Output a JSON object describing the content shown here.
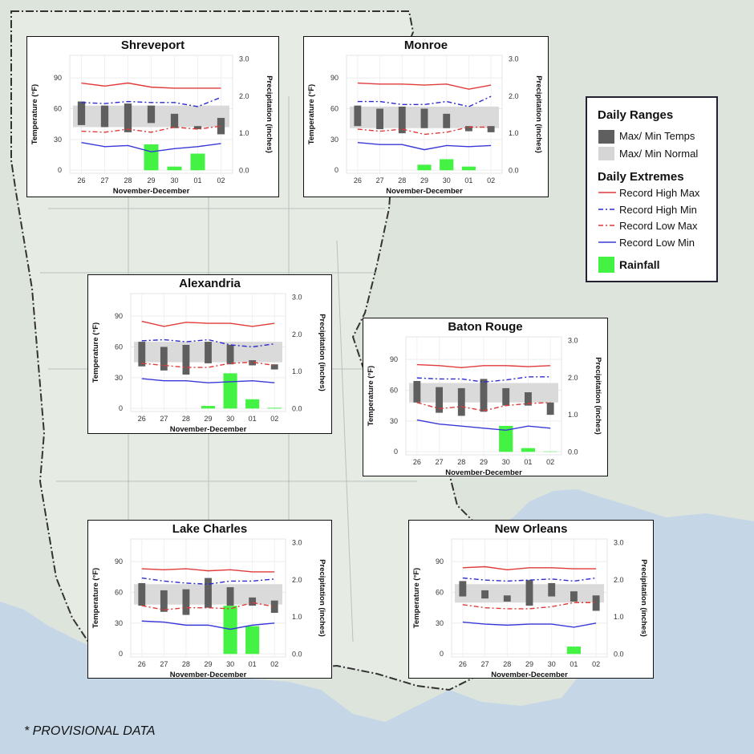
{
  "footnote": "* PROVISIONAL DATA",
  "legend": {
    "ranges_title": "Daily Ranges",
    "temps_label": "Max/ Min Temps",
    "normal_label": "Max/ Min Normal",
    "extremes_title": "Daily Extremes",
    "rec_high_max": "Record High Max",
    "rec_high_min": "Record High Min",
    "rec_low_max": "Record Low Max",
    "rec_low_min": "Record Low Min",
    "rainfall_label": "Rainfall"
  },
  "colors": {
    "temp_bar": "#5f5f5f",
    "normal_band": "#d6d6d6",
    "record_high_max": "#e03a3a",
    "record_high_min": "#2b2bd0",
    "record_low_max": "#e03a3a",
    "record_low_min": "#3838d8",
    "rainfall": "#44f244"
  },
  "chart_data": [
    {
      "type": "bar",
      "title": "Shreveport",
      "xlabel": "November-December",
      "ylabel": "Temperature (°F)",
      "y2label": "Precipitation (inches)",
      "categories": [
        "26",
        "27",
        "28",
        "29",
        "30",
        "01",
        "02"
      ],
      "y_ticks": [
        "0",
        "30",
        "60",
        "90"
      ],
      "y2_ticks": [
        "0.0",
        "1.0",
        "2.0",
        "3.0"
      ],
      "ylim": [
        -3,
        112
      ],
      "y2lim": [
        -0.08,
        3.1
      ],
      "temp_max": [
        67,
        63,
        65,
        63,
        55,
        43,
        51
      ],
      "temp_min": [
        44,
        42,
        37,
        46,
        41,
        40,
        35
      ],
      "normal_max": [
        63,
        63,
        63,
        63,
        63,
        63,
        63
      ],
      "normal_min": [
        42,
        42,
        42,
        42,
        42,
        42,
        42
      ],
      "record_high_max": [
        85,
        82,
        85,
        81,
        80,
        80,
        80
      ],
      "record_high_min": [
        66,
        65,
        67,
        66,
        66,
        62,
        71
      ],
      "record_low_max": [
        38,
        37,
        40,
        37,
        42,
        40,
        43
      ],
      "record_low_min": [
        27,
        23,
        24,
        18,
        21,
        23,
        26
      ],
      "rainfall": [
        0,
        0,
        0,
        0.7,
        0.1,
        0.45,
        0
      ]
    },
    {
      "type": "bar",
      "title": "Monroe",
      "xlabel": "November-December",
      "ylabel": "Temperature (°F)",
      "y2label": "Precipitation (inches)",
      "categories": [
        "26",
        "27",
        "28",
        "29",
        "30",
        "01",
        "02"
      ],
      "y_ticks": [
        "0",
        "30",
        "60",
        "90"
      ],
      "y2_ticks": [
        "0.0",
        "1.0",
        "2.0",
        "3.0"
      ],
      "ylim": [
        -3,
        112
      ],
      "y2lim": [
        -0.08,
        3.1
      ],
      "temp_max": [
        63,
        60,
        62,
        60,
        55,
        43,
        43
      ],
      "temp_min": [
        43,
        40,
        36,
        41,
        41,
        38,
        37
      ],
      "normal_max": [
        62,
        62,
        62,
        62,
        62,
        62,
        62
      ],
      "normal_min": [
        41,
        41,
        41,
        41,
        41,
        41,
        41
      ],
      "record_high_max": [
        85,
        84,
        84,
        83,
        84,
        79,
        83
      ],
      "record_high_min": [
        67,
        67,
        64,
        64,
        67,
        62,
        72
      ],
      "record_low_max": [
        40,
        38,
        40,
        35,
        37,
        42,
        42
      ],
      "record_low_min": [
        27,
        25,
        25,
        20,
        24,
        23,
        24
      ],
      "rainfall": [
        0,
        0,
        0,
        0.15,
        0.3,
        0.1,
        0
      ]
    },
    {
      "type": "bar",
      "title": "Alexandria",
      "xlabel": "November-December",
      "ylabel": "Temperature (°F)",
      "y2label": "Precipitation (inches)",
      "categories": [
        "26",
        "27",
        "28",
        "29",
        "30",
        "01",
        "02"
      ],
      "y_ticks": [
        "0",
        "30",
        "60",
        "90"
      ],
      "y2_ticks": [
        "0.0",
        "1.0",
        "2.0",
        "3.0"
      ],
      "ylim": [
        -3,
        112
      ],
      "y2lim": [
        -0.08,
        3.1
      ],
      "temp_max": [
        65,
        60,
        62,
        65,
        62,
        47,
        43
      ],
      "temp_min": [
        41,
        37,
        33,
        44,
        43,
        42,
        38
      ],
      "normal_max": [
        65,
        65,
        65,
        65,
        65,
        65,
        65
      ],
      "normal_min": [
        45,
        45,
        45,
        45,
        45,
        45,
        45
      ],
      "record_high_max": [
        85,
        80,
        84,
        83,
        83,
        80,
        83
      ],
      "record_high_min": [
        66,
        67,
        65,
        67,
        62,
        60,
        63
      ],
      "record_low_max": [
        44,
        42,
        40,
        40,
        44,
        45,
        42
      ],
      "record_low_min": [
        29,
        27,
        27,
        25,
        26,
        27,
        25
      ],
      "rainfall": [
        0,
        0,
        0,
        0.07,
        0.95,
        0.25,
        0.02
      ]
    },
    {
      "type": "bar",
      "title": "Baton Rouge",
      "xlabel": "November-December",
      "ylabel": "Temperature (°F)",
      "y2label": "Precipitation (inches)",
      "categories": [
        "26",
        "27",
        "28",
        "29",
        "30",
        "01",
        "02"
      ],
      "y_ticks": [
        "0",
        "30",
        "60",
        "90"
      ],
      "y2_ticks": [
        "0.0",
        "1.0",
        "2.0",
        "3.0"
      ],
      "ylim": [
        -3,
        112
      ],
      "y2lim": [
        -0.08,
        3.1
      ],
      "temp_max": [
        69,
        63,
        62,
        71,
        62,
        58,
        48
      ],
      "temp_min": [
        48,
        38,
        35,
        39,
        45,
        45,
        36
      ],
      "normal_max": [
        67,
        67,
        67,
        67,
        67,
        67,
        67
      ],
      "normal_min": [
        48,
        48,
        48,
        48,
        48,
        48,
        48
      ],
      "record_high_max": [
        85,
        84,
        82,
        84,
        84,
        83,
        84
      ],
      "record_high_min": [
        72,
        71,
        71,
        68,
        70,
        73,
        73
      ],
      "record_low_max": [
        48,
        42,
        44,
        40,
        45,
        47,
        48
      ],
      "record_low_min": [
        31,
        27,
        25,
        23,
        21,
        25,
        23
      ],
      "rainfall": [
        0,
        0,
        0,
        0,
        0.7,
        0.1,
        0.01
      ]
    },
    {
      "type": "bar",
      "title": "Lake Charles",
      "xlabel": "November-December",
      "ylabel": "Temperature (°F)",
      "y2label": "Precipitation (inches)",
      "categories": [
        "26",
        "27",
        "28",
        "29",
        "30",
        "01",
        "02"
      ],
      "y_ticks": [
        "0",
        "30",
        "60",
        "90"
      ],
      "y2_ticks": [
        "0.0",
        "1.0",
        "2.0",
        "3.0"
      ],
      "ylim": [
        -3,
        112
      ],
      "y2lim": [
        -0.08,
        3.1
      ],
      "temp_max": [
        69,
        62,
        63,
        74,
        65,
        55,
        52
      ],
      "temp_min": [
        47,
        41,
        38,
        45,
        47,
        47,
        40
      ],
      "normal_max": [
        68,
        68,
        68,
        68,
        68,
        68,
        68
      ],
      "normal_min": [
        48,
        48,
        48,
        48,
        48,
        48,
        48
      ],
      "record_high_max": [
        83,
        82,
        83,
        81,
        82,
        80,
        80
      ],
      "record_high_min": [
        74,
        71,
        69,
        68,
        71,
        71,
        73
      ],
      "record_low_max": [
        47,
        43,
        45,
        45,
        44,
        50,
        46
      ],
      "record_low_min": [
        32,
        31,
        28,
        28,
        24,
        28,
        30
      ],
      "rainfall": [
        0,
        0,
        0,
        0,
        1.3,
        0.75,
        0
      ]
    },
    {
      "type": "bar",
      "title": "New Orleans",
      "xlabel": "November-December",
      "ylabel": "Temperature (°F)",
      "y2label": "Precipitation (inches)",
      "categories": [
        "26",
        "27",
        "28",
        "29",
        "30",
        "01",
        "02"
      ],
      "y_ticks": [
        "0",
        "30",
        "60",
        "90"
      ],
      "y2_ticks": [
        "0.0",
        "1.0",
        "2.0",
        "3.0"
      ],
      "ylim": [
        -3,
        112
      ],
      "y2lim": [
        -0.08,
        3.1
      ],
      "temp_max": [
        71,
        62,
        57,
        72,
        69,
        61,
        57
      ],
      "temp_min": [
        56,
        54,
        51,
        47,
        56,
        51,
        42
      ],
      "normal_max": [
        68,
        68,
        68,
        68,
        68,
        68,
        68
      ],
      "normal_min": [
        50,
        50,
        50,
        50,
        50,
        50,
        50
      ],
      "record_high_max": [
        84,
        85,
        82,
        84,
        84,
        83,
        83
      ],
      "record_high_min": [
        74,
        72,
        71,
        72,
        73,
        71,
        74
      ],
      "record_low_max": [
        48,
        45,
        44,
        44,
        46,
        50,
        50
      ],
      "record_low_min": [
        31,
        29,
        28,
        29,
        29,
        26,
        30
      ],
      "rainfall": [
        0,
        0,
        0,
        0,
        0,
        0.2,
        0
      ]
    }
  ]
}
